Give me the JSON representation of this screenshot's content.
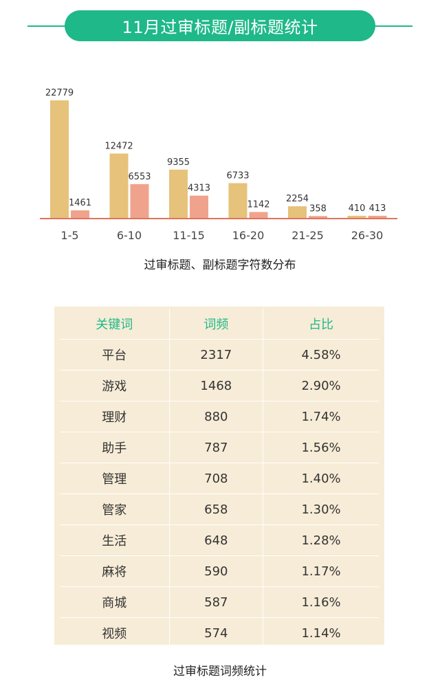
{
  "header": {
    "title": "11月过审标题/副标题统计"
  },
  "chart_data": {
    "type": "bar",
    "categories": [
      "1-5",
      "6-10",
      "11-15",
      "16-20",
      "21-25",
      "26-30"
    ],
    "series": [
      {
        "values": [
          22779,
          12472,
          9355,
          6733,
          2254,
          410
        ],
        "color": "#e6c27a"
      },
      {
        "values": [
          1461,
          6553,
          4313,
          1142,
          358,
          413
        ],
        "color": "#f0a38c"
      }
    ],
    "axis_color": "#e0735a",
    "title": "过审标题、副标题字符数分布",
    "xlabel": "",
    "ylabel": "",
    "ylim": [
      0,
      22779
    ],
    "grid": false,
    "legend": "none"
  },
  "table": {
    "headers": [
      "关键词",
      "词频",
      "占比"
    ],
    "rows": [
      [
        "平台",
        "2317",
        "4.58%"
      ],
      [
        "游戏",
        "1468",
        "2.90%"
      ],
      [
        "理财",
        "880",
        "1.74%"
      ],
      [
        "助手",
        "787",
        "1.56%"
      ],
      [
        "管理",
        "708",
        "1.40%"
      ],
      [
        "管家",
        "658",
        "1.30%"
      ],
      [
        "生活",
        "648",
        "1.28%"
      ],
      [
        "麻将",
        "590",
        "1.17%"
      ],
      [
        "商城",
        "587",
        "1.16%"
      ],
      [
        "视频",
        "574",
        "1.14%"
      ]
    ],
    "caption": "过审标题词频统计"
  },
  "colors": {
    "accent": "#1fb889",
    "table_bg": "#f7ecd7"
  }
}
